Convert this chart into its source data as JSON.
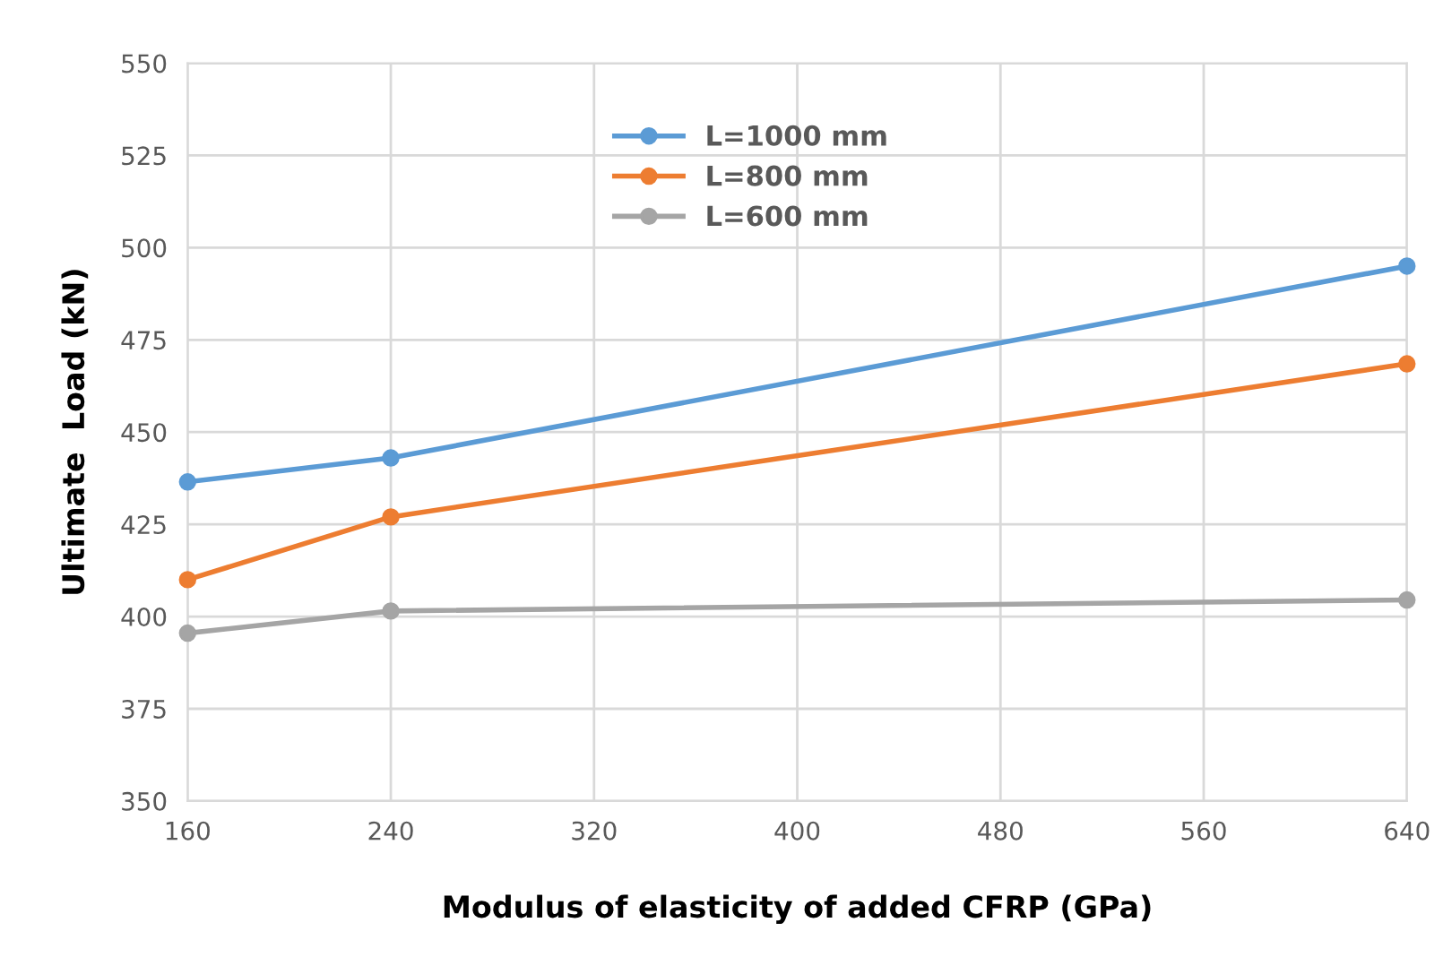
{
  "chart_data": {
    "type": "line",
    "xlabel": "Modulus of elasticity of added CFRP (GPa)",
    "ylabel": "Ultimate  Load (kN)",
    "x": [
      160,
      240,
      640
    ],
    "series": [
      {
        "name": "L=1000 mm",
        "color": "#5b9bd5",
        "values": [
          436.5,
          443,
          495
        ]
      },
      {
        "name": "L=800 mm",
        "color": "#ed7d31",
        "values": [
          410,
          427,
          468.5
        ]
      },
      {
        "name": "L=600 mm",
        "color": "#a5a5a5",
        "values": [
          395.5,
          401.5,
          404.5
        ]
      }
    ],
    "xlim": [
      160,
      640
    ],
    "xticks": [
      160,
      240,
      320,
      400,
      480,
      560,
      640
    ],
    "ylim": [
      350,
      550
    ],
    "yticks": [
      350,
      375,
      400,
      425,
      450,
      475,
      500,
      525,
      550
    ],
    "grid": true,
    "legend": "top left",
    "marker": "circle",
    "line_style": "solid"
  }
}
